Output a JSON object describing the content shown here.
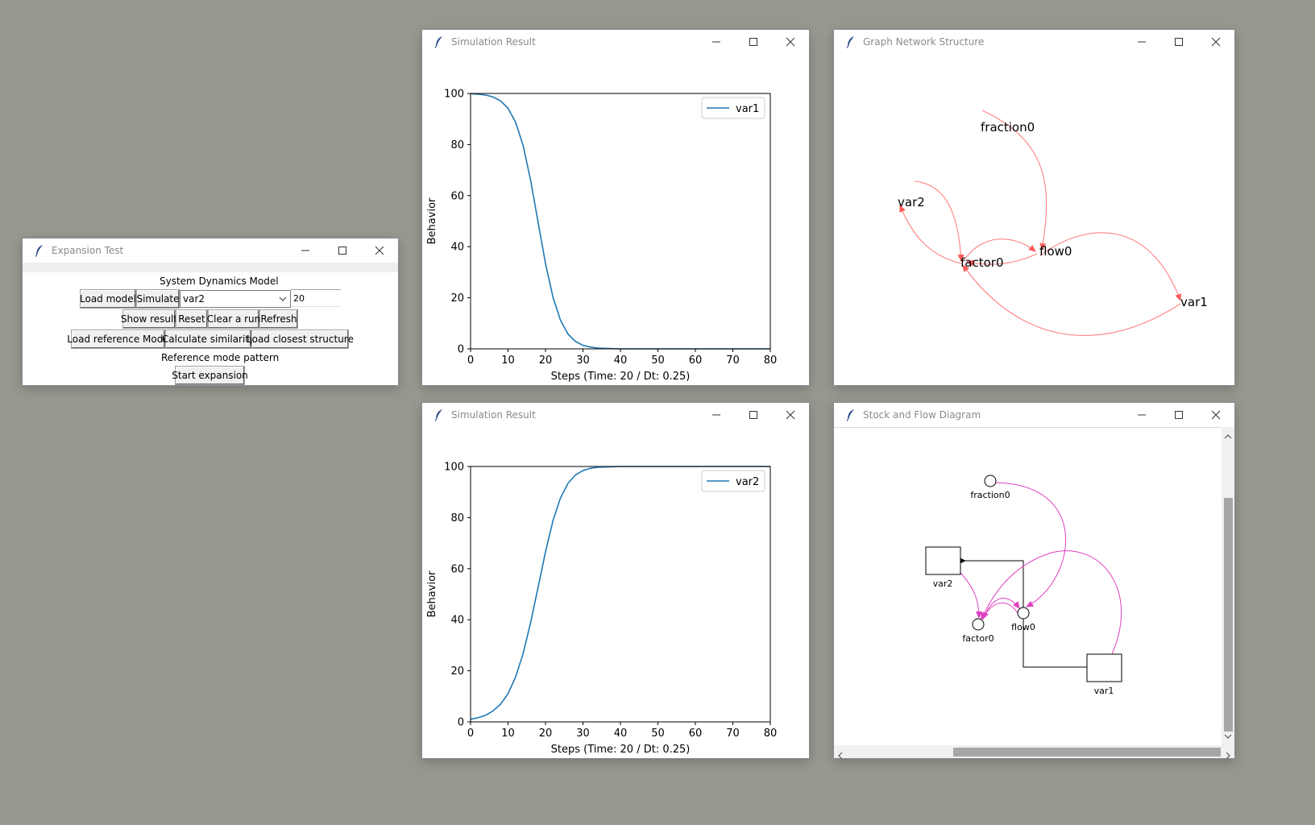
{
  "expansion_window": {
    "title": "Expansion Test",
    "header": "System Dynamics Model",
    "load_model": "Load model",
    "simulate": "Simulate",
    "variable_select": "var2",
    "steps_entry": "20",
    "show_result": "Show result",
    "reset": "Reset",
    "clear_run": "Clear a run",
    "refresh": "Refresh",
    "load_reference_mode": "Load reference Mode",
    "calculate_similarity": "Calculate similarity",
    "load_closest_structure": "Load closest structure",
    "reference_label": "Reference mode pattern",
    "start_expansion": "Start expansion"
  },
  "sim_window_1": {
    "title": "Simulation Result",
    "chart_data": {
      "type": "line",
      "xlabel": "Steps (Time: 20 / Dt: 0.25)",
      "ylabel": "Behavior",
      "xlim": [
        0,
        80
      ],
      "ylim": [
        0,
        100
      ],
      "xticks": [
        "0",
        "10",
        "20",
        "30",
        "40",
        "50",
        "60",
        "70",
        "80"
      ],
      "yticks": [
        "0",
        "20",
        "40",
        "60",
        "80",
        "100"
      ],
      "legend": "top-right",
      "grid": false,
      "series": [
        {
          "name": "var1",
          "color": "#1f77b4",
          "x": [
            0,
            2,
            4,
            6,
            8,
            10,
            12,
            14,
            16,
            18,
            20,
            22,
            24,
            26,
            28,
            30,
            32,
            34,
            36,
            38,
            40,
            44,
            48,
            52,
            56,
            60,
            64,
            68,
            72,
            76,
            80
          ],
          "y": [
            99.9,
            99.7,
            99.4,
            98.6,
            97.1,
            94.2,
            88.8,
            79.8,
            66.2,
            49.8,
            33.4,
            20.2,
            11.2,
            5.8,
            2.9,
            1.4,
            0.7,
            0.3,
            0.2,
            0.1,
            0,
            0,
            0,
            0,
            0,
            0,
            0,
            0,
            0,
            0,
            0
          ]
        }
      ]
    }
  },
  "sim_window_2": {
    "title": "Simulation Result",
    "chart_data": {
      "type": "line",
      "xlabel": "Steps (Time: 20 / Dt: 0.25)",
      "ylabel": "Behavior",
      "xlim": [
        0,
        80
      ],
      "ylim": [
        0,
        100
      ],
      "xticks": [
        "0",
        "10",
        "20",
        "30",
        "40",
        "50",
        "60",
        "70",
        "80"
      ],
      "yticks": [
        "0",
        "20",
        "40",
        "60",
        "80",
        "100"
      ],
      "legend": "top-right",
      "grid": false,
      "series": [
        {
          "name": "var2",
          "color": "#1f77b4",
          "x": [
            0,
            2,
            4,
            6,
            8,
            10,
            12,
            14,
            16,
            18,
            20,
            22,
            24,
            26,
            28,
            30,
            32,
            34,
            36,
            38,
            40,
            44,
            48,
            52,
            56,
            60,
            64,
            68,
            72,
            76,
            80
          ],
          "y": [
            1,
            1.6,
            2.6,
            4.3,
            6.9,
            11,
            17.5,
            26.6,
            38.7,
            52.5,
            66.6,
            78.8,
            87.7,
            93.4,
            96.7,
            98.4,
            99.3,
            99.7,
            99.8,
            99.9,
            100,
            100,
            100,
            100,
            100,
            100,
            100,
            100,
            100,
            100,
            100
          ]
        }
      ]
    }
  },
  "graph_window": {
    "title": "Graph Network Structure",
    "edge_color": "#ff7f7f",
    "nodes": [
      "fraction0",
      "var2",
      "flow0",
      "factor0",
      "var1"
    ]
  },
  "stockflow_window": {
    "title": "Stock and Flow Diagram",
    "link_color": "#e040c0",
    "stocks": [
      "var2",
      "var1"
    ],
    "auxiliaries": [
      "fraction0",
      "flow0",
      "factor0"
    ]
  }
}
